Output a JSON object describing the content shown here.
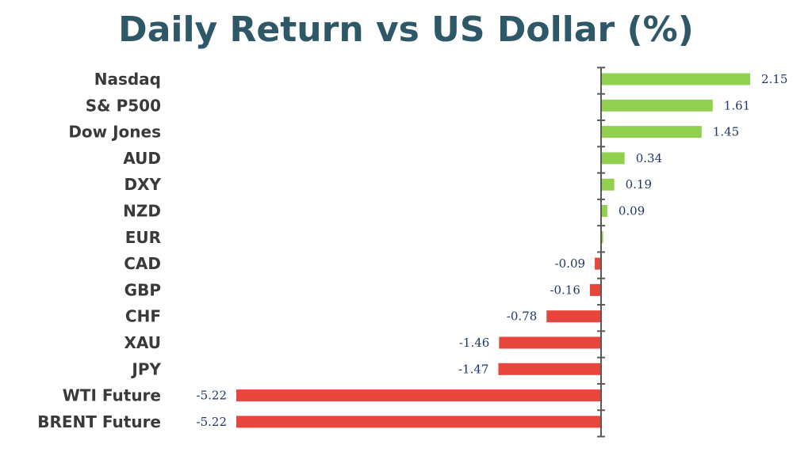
{
  "chart_data": {
    "type": "bar",
    "orientation": "horizontal",
    "title": "Daily Return vs US Dollar (%)",
    "categories": [
      "Nasdaq",
      "S& P500",
      "Dow Jones",
      "AUD",
      "DXY",
      "NZD",
      "EUR",
      "CAD",
      "GBP",
      "CHF",
      "XAU",
      "JPY",
      "WTI Future",
      "BRENT Future"
    ],
    "values": [
      2.15,
      1.61,
      1.45,
      0.34,
      0.19,
      0.09,
      0.03,
      -0.09,
      -0.16,
      -0.78,
      -1.46,
      -1.47,
      -5.22,
      -5.22
    ],
    "value_labels": [
      "2.15",
      "1.61",
      "1.45",
      "0.34",
      "0.19",
      "0.09",
      "",
      "-0.09",
      "-0.16",
      "-0.78",
      "-1.46",
      "-1.47",
      "-5.22",
      "-5.22"
    ],
    "xlim": [
      -5.22,
      2.15
    ],
    "colors": {
      "positive": "#92d050",
      "negative": "#e8453c",
      "axis": "#595959",
      "title": "#2e5868"
    },
    "xlabel": "",
    "ylabel": "",
    "legend": "none",
    "grid": false
  }
}
